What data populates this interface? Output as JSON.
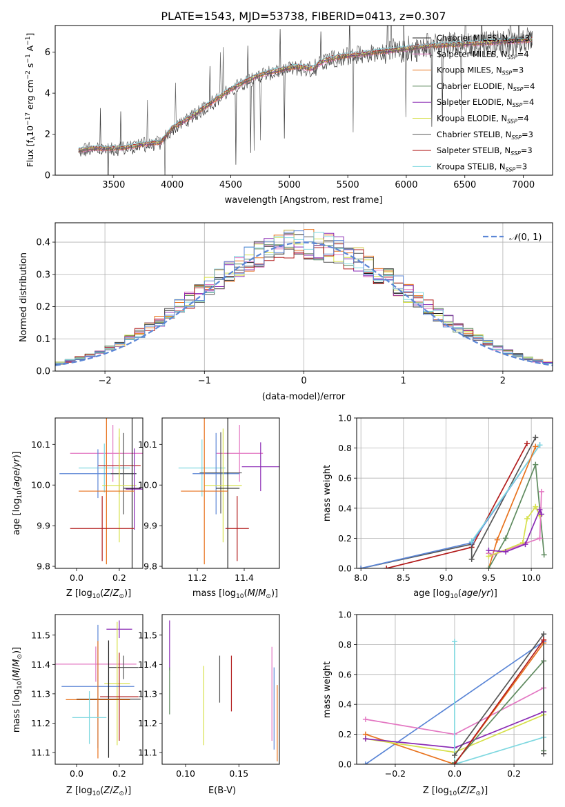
{
  "chart_data": [
    {
      "id": "spectrum",
      "type": "line",
      "title": "PLATE=1543, MJD=53738, FIBERID=0413, z=0.307",
      "xlabel": "wavelength [Angstrom, rest frame]",
      "ylabel": "Flux [f$_\\lambda$10$^{-17}$ erg cm$^{-2}$ s$^{-1}$ A$^{-1}$]",
      "ylabel_parts": [
        "Flux [f",
        "λ",
        "10",
        "−17",
        " erg cm",
        "−2",
        " s",
        "−1",
        " A",
        "−1",
        "]"
      ],
      "xlim": [
        3000,
        7250
      ],
      "ylim": [
        0,
        7.3
      ],
      "xticks": [
        3500,
        4000,
        4500,
        5000,
        5500,
        6000,
        6500,
        7000
      ],
      "yticks": [
        0,
        2,
        4,
        6
      ],
      "legend_position": "upper-right",
      "data_x": [
        3200,
        3300,
        3450,
        3600,
        3750,
        3900,
        4000,
        4150,
        4300,
        4450,
        4600,
        4750,
        4900,
        5050,
        5200,
        5300,
        5450,
        5600,
        5750,
        5900,
        6050,
        6200,
        6350,
        6500,
        6650,
        6800,
        6950,
        7080
      ],
      "data_y": [
        1.2,
        1.3,
        1.3,
        1.35,
        1.5,
        1.6,
        2.3,
        2.8,
        3.4,
        4.0,
        4.5,
        4.9,
        5.1,
        5.3,
        5.2,
        5.6,
        5.8,
        5.9,
        6.0,
        6.1,
        6.2,
        6.3,
        6.35,
        6.4,
        6.45,
        6.5,
        6.55,
        6.6
      ],
      "series": [
        {
          "name": "Chabrier MILES, N$_{SSP}$=3",
          "label": "Chabrier MILES, N",
          "sub": "SSP",
          "suffix": "=3",
          "color": "#1f1f1f"
        },
        {
          "name": "Salpeter MILES, N$_{SSP}$=4",
          "label": "Salpeter MILES, N",
          "sub": "SSP",
          "suffix": "=4",
          "color": "#e377c2"
        },
        {
          "name": "Kroupa MILES, N$_{SSP}$=3",
          "label": "Kroupa MILES, N",
          "sub": "SSP",
          "suffix": "=3",
          "color": "#e8721c"
        },
        {
          "name": "Chabrier ELODIE, N$_{SSP}$=4",
          "label": "Chabrier ELODIE, N",
          "sub": "SSP",
          "suffix": "=4",
          "color": "#5e8a5e"
        },
        {
          "name": "Salpeter ELODIE, N$_{SSP}$=4",
          "label": "Salpeter ELODIE, N",
          "sub": "SSP",
          "suffix": "=4",
          "color": "#8a2ab4"
        },
        {
          "name": "Kroupa ELODIE, N$_{SSP}$=4",
          "label": "Kroupa ELODIE, N",
          "sub": "SSP",
          "suffix": "=4",
          "color": "#d6e04a"
        },
        {
          "name": "Chabrier STELIB, N$_{SSP}$=3",
          "label": "Chabrier STELIB, N",
          "sub": "SSP",
          "suffix": "=3",
          "color": "#555555"
        },
        {
          "name": "Salpeter STELIB, N$_{SSP}$=3",
          "label": "Salpeter STELIB, N",
          "sub": "SSP",
          "suffix": "=3",
          "color": "#b21c1c"
        },
        {
          "name": "Kroupa STELIB, N$_{SSP}$=3",
          "label": "Kroupa STELIB, N",
          "sub": "SSP",
          "suffix": "=3",
          "color": "#7fd8e0"
        }
      ]
    },
    {
      "id": "residuals",
      "type": "line",
      "xlabel": "(data-model)/error",
      "ylabel": "Normed distribution",
      "xlim": [
        -2.5,
        2.5
      ],
      "ylim": [
        0,
        0.46
      ],
      "xticks": [
        -2,
        -1,
        0,
        1,
        2
      ],
      "xtick_labels": [
        "−2",
        "−1",
        "0",
        "1",
        "2"
      ],
      "yticks": [
        0,
        0.1,
        0.2,
        0.3,
        0.4
      ],
      "ytick_labels": [
        "0.0",
        "0.1",
        "0.2",
        "0.3",
        "0.4"
      ],
      "grid": true,
      "legend_position": "upper-right",
      "legend_label": "N(0,1)",
      "legend_label_parts": [
        "𝒩",
        "(0, 1)"
      ],
      "gaussian": {
        "mean": 0,
        "sigma": 1,
        "color": "#5b86d6"
      }
    },
    {
      "id": "age-vs-Z",
      "type": "scatter",
      "xlabel": "Z [log$_{10}$(Z/Z$_\\odot$)]",
      "ylabel": "age  [log$_{10}$(age/yr)]",
      "xlim": [
        -0.1,
        0.31
      ],
      "ylim": [
        9.795,
        10.165
      ],
      "xticks": [
        0.0,
        0.2
      ],
      "xtick_labels": [
        "0.0",
        "0.2"
      ],
      "yticks": [
        9.8,
        9.9,
        10.0,
        10.1
      ],
      "ytick_labels": [
        "9.8",
        "9.9",
        "10.0",
        "10.1"
      ],
      "points": [
        {
          "x": 0.17,
          "xerr": 0.2,
          "y": 10.078,
          "yerr": 0.07,
          "color": "#e377c2"
        },
        {
          "x": 0.13,
          "xerr": 0.12,
          "y": 10.042,
          "yerr": 0.06,
          "color": "#7fd8e0"
        },
        {
          "x": 0.2,
          "xerr": 0.1,
          "y": 10.048,
          "yerr": 0.07,
          "color": "#b21c1c"
        },
        {
          "x": 0.1,
          "xerr": 0.18,
          "y": 10.028,
          "yerr": 0.06,
          "color": "#5b86d6"
        },
        {
          "x": 0.22,
          "xerr": 0.06,
          "y": 10.028,
          "yerr": 0.1,
          "color": "#555555"
        },
        {
          "x": 0.2,
          "xerr": 0.08,
          "y": 9.999,
          "yerr": 0.14,
          "color": "#d6e04a"
        },
        {
          "x": 0.27,
          "xerr": 0.04,
          "y": 9.99,
          "yerr": 0.1,
          "color": "#8a2ab4"
        },
        {
          "x": 0.26,
          "xerr": 0.04,
          "y": 9.992,
          "yerr": 0.2,
          "color": "#1f1f1f"
        },
        {
          "x": 0.14,
          "xerr": 0.13,
          "y": 9.985,
          "yerr": 0.18,
          "color": "#e8721c"
        },
        {
          "x": 0.12,
          "xerr": 0.15,
          "y": 9.893,
          "yerr": 0.08,
          "color": "#b21c1c"
        }
      ]
    },
    {
      "id": "age-vs-mass",
      "type": "scatter",
      "xlabel": "mass [log$_{10}$(M/M$_\\odot$)]",
      "ylabel": "",
      "xlim": [
        11.05,
        11.55
      ],
      "ylim": [
        9.795,
        10.165
      ],
      "xticks": [
        11.2,
        11.4
      ],
      "xtick_labels": [
        "11.2",
        "11.4"
      ],
      "yticks": [
        9.8,
        9.9,
        10.0,
        10.1
      ],
      "ytick_labels": [
        "9.8",
        "9.9",
        "10.0",
        "10.1"
      ],
      "points": [
        {
          "x": 11.38,
          "xerr": 0.1,
          "y": 10.078,
          "yerr": 0.07,
          "color": "#e377c2"
        },
        {
          "x": 11.22,
          "xerr": 0.1,
          "y": 10.042,
          "yerr": 0.07,
          "color": "#7fd8e0"
        },
        {
          "x": 11.28,
          "xerr": 0.1,
          "y": 10.028,
          "yerr": 0.1,
          "color": "#5b86d6"
        },
        {
          "x": 11.3,
          "xerr": 0.09,
          "y": 10.03,
          "yerr": 0.1,
          "color": "#555555"
        },
        {
          "x": 11.47,
          "xerr": 0.08,
          "y": 10.045,
          "yerr": 0.06,
          "color": "#8a2ab4"
        },
        {
          "x": 11.31,
          "xerr": 0.08,
          "y": 9.999,
          "yerr": 0.14,
          "color": "#d6e04a"
        },
        {
          "x": 11.33,
          "xerr": 0.05,
          "y": 9.992,
          "yerr": 0.2,
          "color": "#1f1f1f"
        },
        {
          "x": 11.23,
          "xerr": 0.1,
          "y": 9.985,
          "yerr": 0.18,
          "color": "#e8721c"
        },
        {
          "x": 11.37,
          "xerr": 0.05,
          "y": 9.893,
          "yerr": 0.08,
          "color": "#b21c1c"
        }
      ]
    },
    {
      "id": "weight-vs-age",
      "type": "line",
      "xlabel": "age  [log$_{10}$(age/yr)]",
      "ylabel": "mass weight",
      "xlim": [
        7.95,
        10.25
      ],
      "ylim": [
        0,
        1.0
      ],
      "xticks": [
        8.0,
        8.5,
        9.0,
        9.5,
        10.0
      ],
      "xtick_labels": [
        "8.0",
        "8.5",
        "9.0",
        "9.5",
        "10.0"
      ],
      "yticks": [
        0.0,
        0.2,
        0.4,
        0.6,
        0.8,
        1.0
      ],
      "ytick_labels": [
        "0.0",
        "0.2",
        "0.4",
        "0.6",
        "0.8",
        "1.0"
      ],
      "grid": true,
      "series": [
        {
          "color": "#b21c1c",
          "x": [
            8.3,
            9.3,
            9.95
          ],
          "y": [
            0.0,
            0.14,
            0.83
          ]
        },
        {
          "color": "#555555",
          "x": [
            8.0,
            9.3,
            9.3,
            10.05
          ],
          "y": [
            0.0,
            0.16,
            0.06,
            0.87
          ]
        },
        {
          "color": "#5b86d6",
          "x": [
            8.0,
            9.3,
            10.1
          ],
          "y": [
            0.0,
            0.17,
            0.82
          ]
        },
        {
          "color": "#7fd8e0",
          "x": [
            9.3,
            10.1
          ],
          "y": [
            0.18,
            0.82
          ]
        },
        {
          "color": "#e8721c",
          "x": [
            9.5,
            9.6,
            10.05
          ],
          "y": [
            0.0,
            0.19,
            0.81
          ]
        },
        {
          "color": "#5e8a5e",
          "x": [
            9.5,
            9.7,
            10.05,
            10.15
          ],
          "y": [
            0.0,
            0.2,
            0.69,
            0.09
          ]
        },
        {
          "color": "#e377c2",
          "x": [
            9.5,
            9.55,
            10.1,
            10.12
          ],
          "y": [
            0.1,
            0.09,
            0.2,
            0.51
          ]
        },
        {
          "color": "#d6e04a",
          "x": [
            9.5,
            9.9,
            9.95,
            10.05,
            10.1
          ],
          "y": [
            0.08,
            0.17,
            0.33,
            0.41,
            0.35
          ]
        },
        {
          "color": "#8a2ab4",
          "x": [
            9.5,
            9.7,
            9.93,
            10.1,
            10.12
          ],
          "y": [
            0.12,
            0.11,
            0.16,
            0.39,
            0.36
          ]
        }
      ]
    },
    {
      "id": "mass-vs-Z",
      "type": "scatter",
      "xlabel": "Z [log$_{10}$(Z/Z$_\\odot$)]",
      "ylabel": "mass [log$_{10}$(M/M$_\\odot$)]",
      "xlim": [
        -0.1,
        0.31
      ],
      "ylim": [
        11.06,
        11.57
      ],
      "xticks": [
        0.0,
        0.2
      ],
      "xtick_labels": [
        "0.0",
        "0.2"
      ],
      "yticks": [
        11.1,
        11.2,
        11.3,
        11.4,
        11.5
      ],
      "ytick_labels": [
        "11.1",
        "11.2",
        "11.3",
        "11.4",
        "11.5"
      ],
      "points": [
        {
          "x": 0.2,
          "xerr": 0.06,
          "y": 11.52,
          "yerr": 0.03,
          "color": "#8a2ab4"
        },
        {
          "x": 0.09,
          "xerr": 0.19,
          "y": 11.401,
          "yerr": 0.06,
          "color": "#e377c2"
        },
        {
          "x": 0.22,
          "xerr": 0.07,
          "y": 11.39,
          "yerr": 0.04,
          "color": "#555555"
        },
        {
          "x": 0.19,
          "xerr": 0.06,
          "y": 11.335,
          "yerr": 0.21,
          "color": "#d6e04a"
        },
        {
          "x": 0.1,
          "xerr": 0.17,
          "y": 11.325,
          "yerr": 0.21,
          "color": "#5b86d6"
        },
        {
          "x": 0.2,
          "xerr": 0.09,
          "y": 11.29,
          "yerr": 0.15,
          "color": "#b21c1c"
        },
        {
          "x": 0.15,
          "xerr": 0.15,
          "y": 11.282,
          "yerr": 0.2,
          "color": "#1f1f1f"
        },
        {
          "x": 0.1,
          "xerr": 0.15,
          "y": 11.28,
          "yerr": 0.2,
          "color": "#e8721c"
        },
        {
          "x": 0.06,
          "xerr": 0.08,
          "y": 11.219,
          "yerr": 0.09,
          "color": "#7fd8e0"
        }
      ]
    },
    {
      "id": "mass-vs-EBV",
      "type": "scatter",
      "xlabel": "E(B-V)",
      "ylabel": "",
      "xlim": [
        0.078,
        0.188
      ],
      "ylim": [
        11.06,
        11.57
      ],
      "xticks": [
        0.1,
        0.15
      ],
      "xtick_labels": [
        "0.10",
        "0.15"
      ],
      "yticks": [
        11.1,
        11.2,
        11.3,
        11.4,
        11.5
      ],
      "ytick_labels": [
        "11.1",
        "11.2",
        "11.3",
        "11.4",
        "11.5"
      ],
      "points": [
        {
          "x": 0.085,
          "y": 11.465,
          "yerr": 0.085,
          "color": "#8a2ab4"
        },
        {
          "x": 0.085,
          "y": 11.31,
          "yerr": 0.08,
          "color": "#5e8a5e"
        },
        {
          "x": 0.117,
          "y": 11.26,
          "yerr": 0.135,
          "color": "#d6e04a"
        },
        {
          "x": 0.132,
          "y": 11.35,
          "yerr": 0.08,
          "color": "#555555"
        },
        {
          "x": 0.143,
          "y": 11.335,
          "yerr": 0.095,
          "color": "#b21c1c"
        },
        {
          "x": 0.181,
          "y": 11.3,
          "yerr": 0.16,
          "color": "#e377c2"
        },
        {
          "x": 0.183,
          "y": 11.25,
          "yerr": 0.14,
          "color": "#5b86d6"
        },
        {
          "x": 0.186,
          "y": 11.2,
          "yerr": 0.13,
          "color": "#e8721c"
        }
      ]
    },
    {
      "id": "weight-vs-Z",
      "type": "line",
      "xlabel": "Z [log$_{10}$(Z/Z$_\\odot$)]",
      "ylabel": "mass weight",
      "xlim": [
        -0.33,
        0.33
      ],
      "ylim": [
        0,
        1.0
      ],
      "xticks": [
        -0.2,
        0.0,
        0.2
      ],
      "xtick_labels": [
        "−0.2",
        "0.0",
        "0.2"
      ],
      "yticks": [
        0.0,
        0.2,
        0.4,
        0.6,
        0.8,
        1.0
      ],
      "ytick_labels": [
        "0.0",
        "0.2",
        "0.4",
        "0.6",
        "0.8",
        "1.0"
      ],
      "grid": true,
      "series": [
        {
          "color": "#5b86d6",
          "x": [
            -0.3,
            0.3
          ],
          "y": [
            0.0,
            0.82
          ]
        },
        {
          "color": "#e377c2",
          "x": [
            -0.3,
            0.0,
            0.3
          ],
          "y": [
            0.3,
            0.2,
            0.51
          ]
        },
        {
          "color": "#e8721c",
          "x": [
            -0.3,
            0.0,
            0.3
          ],
          "y": [
            0.2,
            0.0,
            0.81
          ]
        },
        {
          "color": "#d6e04a",
          "x": [
            -0.3,
            0.0,
            0.3
          ],
          "y": [
            0.17,
            0.08,
            0.33
          ]
        },
        {
          "color": "#8a2ab4",
          "x": [
            -0.3,
            0.0,
            0.3
          ],
          "y": [
            0.17,
            0.11,
            0.35
          ]
        },
        {
          "color": "#7fd8e0",
          "x": [
            0.0,
            0.0,
            0.3
          ],
          "y": [
            0.82,
            0.0,
            0.18
          ]
        },
        {
          "color": "#5e8a5e",
          "x": [
            0.0,
            0.3,
            0.3
          ],
          "y": [
            0.01,
            0.69,
            0.09
          ]
        },
        {
          "color": "#555555",
          "x": [
            0.0,
            0.3,
            0.3
          ],
          "y": [
            0.06,
            0.87,
            0.07
          ]
        },
        {
          "color": "#b21c1c",
          "x": [
            0.0,
            0.3
          ],
          "y": [
            0.0,
            0.83
          ]
        }
      ]
    }
  ]
}
